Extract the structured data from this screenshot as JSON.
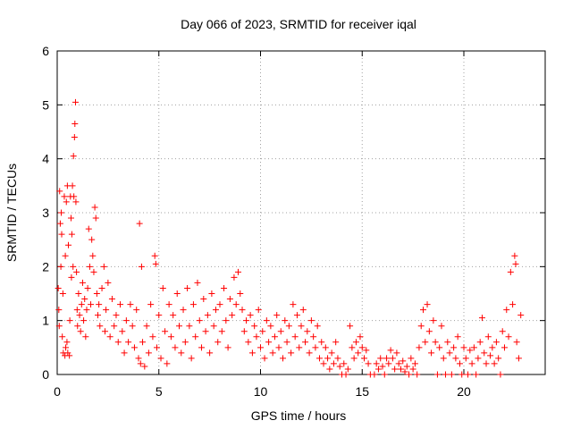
{
  "chart_data": {
    "type": "scatter",
    "title": "Day 066 of 2023, SRMTID for receiver iqal",
    "xlabel": "GPS time / hours",
    "ylabel": "SRMTID / TECUs",
    "xlim": [
      0,
      24
    ],
    "ylim": [
      0,
      6
    ],
    "xticks": [
      0,
      5,
      10,
      15,
      20
    ],
    "yticks": [
      0,
      1,
      2,
      3,
      4,
      5,
      6
    ],
    "xtick_labels": [
      "0",
      "5",
      "10",
      "15",
      "20"
    ],
    "ytick_labels": [
      "0",
      "1",
      "2",
      "3",
      "4",
      "5",
      "6"
    ],
    "grid": true,
    "marker": "+",
    "color": "#ff0000",
    "series": [
      {
        "name": "SRMTID",
        "points": [
          [
            0.05,
            1.6
          ],
          [
            0.08,
            1.2
          ],
          [
            0.1,
            0.9
          ],
          [
            0.12,
            3.4
          ],
          [
            0.15,
            2.8
          ],
          [
            0.18,
            2.0
          ],
          [
            0.2,
            3.0
          ],
          [
            0.22,
            2.6
          ],
          [
            0.25,
            0.7
          ],
          [
            0.28,
            1.5
          ],
          [
            0.3,
            0.4
          ],
          [
            0.35,
            3.3
          ],
          [
            0.38,
            0.35
          ],
          [
            0.4,
            2.2
          ],
          [
            0.42,
            0.5
          ],
          [
            0.45,
            3.2
          ],
          [
            0.48,
            0.6
          ],
          [
            0.5,
            3.5
          ],
          [
            0.52,
            0.4
          ],
          [
            0.55,
            2.4
          ],
          [
            0.6,
            0.35
          ],
          [
            0.62,
            1.0
          ],
          [
            0.65,
            3.3
          ],
          [
            0.68,
            2.9
          ],
          [
            0.7,
            1.8
          ],
          [
            0.72,
            2.6
          ],
          [
            0.75,
            3.5
          ],
          [
            0.78,
            2.0
          ],
          [
            0.8,
            4.05
          ],
          [
            0.82,
            3.3
          ],
          [
            0.85,
            4.4
          ],
          [
            0.87,
            4.65
          ],
          [
            0.9,
            5.05
          ],
          [
            0.92,
            3.2
          ],
          [
            0.95,
            1.9
          ],
          [
            0.98,
            1.2
          ],
          [
            1.0,
            0.9
          ],
          [
            1.05,
            1.5
          ],
          [
            1.1,
            1.1
          ],
          [
            1.15,
            0.8
          ],
          [
            1.2,
            1.3
          ],
          [
            1.25,
            1.7
          ],
          [
            1.3,
            1.0
          ],
          [
            1.35,
            1.4
          ],
          [
            1.4,
            0.7
          ],
          [
            1.45,
            1.2
          ],
          [
            1.5,
            1.6
          ],
          [
            1.55,
            2.7
          ],
          [
            1.6,
            2.0
          ],
          [
            1.65,
            1.3
          ],
          [
            1.7,
            2.5
          ],
          [
            1.75,
            2.2
          ],
          [
            1.8,
            1.9
          ],
          [
            1.85,
            3.1
          ],
          [
            1.9,
            2.9
          ],
          [
            1.95,
            1.5
          ],
          [
            2.0,
            1.1
          ],
          [
            2.05,
            1.3
          ],
          [
            2.1,
            0.9
          ],
          [
            2.2,
            1.6
          ],
          [
            2.3,
            2.0
          ],
          [
            2.35,
            0.8
          ],
          [
            2.4,
            1.2
          ],
          [
            2.5,
            1.7
          ],
          [
            2.6,
            0.7
          ],
          [
            2.7,
            1.4
          ],
          [
            2.8,
            0.9
          ],
          [
            2.9,
            1.1
          ],
          [
            3.0,
            0.6
          ],
          [
            3.1,
            1.3
          ],
          [
            3.2,
            0.8
          ],
          [
            3.3,
            0.4
          ],
          [
            3.4,
            1.0
          ],
          [
            3.5,
            0.6
          ],
          [
            3.6,
            1.3
          ],
          [
            3.7,
            0.9
          ],
          [
            3.8,
            0.5
          ],
          [
            3.9,
            1.2
          ],
          [
            4.0,
            0.3
          ],
          [
            4.05,
            2.8
          ],
          [
            4.1,
            0.2
          ],
          [
            4.15,
            2.0
          ],
          [
            4.2,
            0.6
          ],
          [
            4.3,
            0.15
          ],
          [
            4.4,
            0.9
          ],
          [
            4.5,
            0.4
          ],
          [
            4.6,
            1.3
          ],
          [
            4.7,
            0.7
          ],
          [
            4.8,
            2.2
          ],
          [
            4.85,
            2.05
          ],
          [
            4.9,
            0.5
          ],
          [
            5.0,
            1.1
          ],
          [
            5.1,
            0.3
          ],
          [
            5.2,
            1.6
          ],
          [
            5.3,
            0.8
          ],
          [
            5.4,
            0.2
          ],
          [
            5.5,
            1.3
          ],
          [
            5.6,
            0.7
          ],
          [
            5.7,
            1.1
          ],
          [
            5.8,
            0.5
          ],
          [
            5.9,
            1.5
          ],
          [
            6.0,
            0.9
          ],
          [
            6.1,
            0.4
          ],
          [
            6.2,
            1.2
          ],
          [
            6.3,
            0.6
          ],
          [
            6.4,
            1.6
          ],
          [
            6.5,
            0.9
          ],
          [
            6.6,
            0.3
          ],
          [
            6.7,
            1.3
          ],
          [
            6.8,
            0.7
          ],
          [
            6.9,
            1.7
          ],
          [
            7.0,
            1.0
          ],
          [
            7.1,
            0.5
          ],
          [
            7.2,
            1.4
          ],
          [
            7.3,
            0.8
          ],
          [
            7.4,
            1.1
          ],
          [
            7.5,
            0.4
          ],
          [
            7.6,
            1.5
          ],
          [
            7.7,
            0.9
          ],
          [
            7.8,
            1.2
          ],
          [
            7.9,
            0.6
          ],
          [
            8.0,
            1.3
          ],
          [
            8.1,
            0.8
          ],
          [
            8.2,
            1.6
          ],
          [
            8.3,
            1.0
          ],
          [
            8.4,
            0.5
          ],
          [
            8.5,
            1.4
          ],
          [
            8.6,
            1.1
          ],
          [
            8.7,
            1.8
          ],
          [
            8.8,
            1.3
          ],
          [
            8.9,
            1.9
          ],
          [
            9.0,
            1.5
          ],
          [
            9.1,
            1.2
          ],
          [
            9.2,
            0.8
          ],
          [
            9.3,
            1.0
          ],
          [
            9.4,
            0.6
          ],
          [
            9.5,
            1.1
          ],
          [
            9.6,
            0.4
          ],
          [
            9.7,
            0.9
          ],
          [
            9.8,
            0.7
          ],
          [
            9.9,
            1.2
          ],
          [
            10.0,
            0.5
          ],
          [
            10.1,
            0.8
          ],
          [
            10.2,
            0.3
          ],
          [
            10.3,
            1.0
          ],
          [
            10.4,
            0.6
          ],
          [
            10.5,
            0.9
          ],
          [
            10.6,
            0.4
          ],
          [
            10.7,
            0.7
          ],
          [
            10.8,
            1.1
          ],
          [
            10.9,
            0.5
          ],
          [
            11.0,
            0.8
          ],
          [
            11.1,
            0.3
          ],
          [
            11.2,
            1.0
          ],
          [
            11.3,
            0.6
          ],
          [
            11.4,
            0.9
          ],
          [
            11.5,
            0.4
          ],
          [
            11.6,
            1.3
          ],
          [
            11.7,
            0.7
          ],
          [
            11.8,
            1.1
          ],
          [
            11.9,
            0.5
          ],
          [
            12.0,
            0.9
          ],
          [
            12.1,
            1.2
          ],
          [
            12.2,
            0.6
          ],
          [
            12.3,
            0.8
          ],
          [
            12.4,
            0.4
          ],
          [
            12.5,
            1.0
          ],
          [
            12.6,
            0.7
          ],
          [
            12.7,
            0.5
          ],
          [
            12.8,
            0.9
          ],
          [
            12.9,
            0.3
          ],
          [
            13.0,
            0.6
          ],
          [
            13.1,
            0.2
          ],
          [
            13.2,
            0.5
          ],
          [
            13.3,
            0.3
          ],
          [
            13.4,
            0.1
          ],
          [
            13.5,
            0.4
          ],
          [
            13.6,
            0.2
          ],
          [
            13.7,
            0.6
          ],
          [
            13.8,
            0.3
          ],
          [
            13.9,
            0.15
          ],
          [
            14.0,
            0.0
          ],
          [
            14.1,
            0.2
          ],
          [
            14.2,
            0.0
          ],
          [
            14.3,
            0.1
          ],
          [
            14.4,
            0.9
          ],
          [
            14.5,
            0.5
          ],
          [
            14.6,
            0.3
          ],
          [
            14.7,
            0.6
          ],
          [
            14.8,
            0.4
          ],
          [
            14.9,
            0.7
          ],
          [
            15.0,
            0.5
          ],
          [
            15.1,
            0.3
          ],
          [
            15.2,
            0.45
          ],
          [
            15.3,
            0.2
          ],
          [
            15.4,
            0.0
          ],
          [
            15.6,
            0.0
          ],
          [
            15.7,
            0.2
          ],
          [
            15.8,
            0.1
          ],
          [
            15.9,
            0.3
          ],
          [
            16.0,
            0.15
          ],
          [
            16.1,
            0.0
          ],
          [
            16.2,
            0.3
          ],
          [
            16.3,
            0.2
          ],
          [
            16.4,
            0.45
          ],
          [
            16.5,
            0.3
          ],
          [
            16.6,
            0.1
          ],
          [
            16.7,
            0.4
          ],
          [
            16.8,
            0.2
          ],
          [
            16.9,
            0.1
          ],
          [
            17.0,
            0.25
          ],
          [
            17.1,
            0.05
          ],
          [
            17.2,
            0.15
          ],
          [
            17.3,
            0.0
          ],
          [
            17.4,
            0.3
          ],
          [
            17.5,
            0.1
          ],
          [
            17.6,
            0.2
          ],
          [
            17.7,
            0.0
          ],
          [
            17.8,
            0.5
          ],
          [
            17.9,
            0.9
          ],
          [
            18.0,
            1.2
          ],
          [
            18.1,
            0.6
          ],
          [
            18.2,
            1.3
          ],
          [
            18.3,
            0.8
          ],
          [
            18.4,
            0.4
          ],
          [
            18.5,
            1.0
          ],
          [
            18.6,
            0.6
          ],
          [
            18.7,
            0.0
          ],
          [
            18.8,
            0.5
          ],
          [
            18.9,
            0.9
          ],
          [
            19.0,
            0.3
          ],
          [
            19.1,
            0.0
          ],
          [
            19.2,
            0.6
          ],
          [
            19.3,
            0.4
          ],
          [
            19.4,
            0.0
          ],
          [
            19.5,
            0.5
          ],
          [
            19.6,
            0.3
          ],
          [
            19.7,
            0.7
          ],
          [
            19.8,
            0.2
          ],
          [
            19.9,
            0.0
          ],
          [
            20.0,
            0.5
          ],
          [
            20.1,
            0.3
          ],
          [
            20.2,
            0.0
          ],
          [
            20.3,
            0.45
          ],
          [
            20.4,
            0.2
          ],
          [
            20.5,
            0.5
          ],
          [
            20.6,
            0.0
          ],
          [
            20.7,
            0.3
          ],
          [
            20.8,
            0.6
          ],
          [
            20.9,
            1.05
          ],
          [
            21.0,
            0.4
          ],
          [
            21.1,
            0.2
          ],
          [
            21.2,
            0.7
          ],
          [
            21.3,
            0.35
          ],
          [
            21.4,
            0.5
          ],
          [
            21.5,
            0.2
          ],
          [
            21.6,
            0.6
          ],
          [
            21.7,
            0.3
          ],
          [
            21.8,
            0.0
          ],
          [
            21.9,
            0.8
          ],
          [
            22.0,
            0.5
          ],
          [
            22.1,
            1.2
          ],
          [
            22.2,
            0.7
          ],
          [
            22.3,
            1.9
          ],
          [
            22.4,
            1.3
          ],
          [
            22.5,
            2.2
          ],
          [
            22.55,
            2.05
          ],
          [
            22.6,
            0.6
          ],
          [
            22.7,
            0.3
          ],
          [
            22.8,
            1.1
          ]
        ]
      }
    ]
  }
}
